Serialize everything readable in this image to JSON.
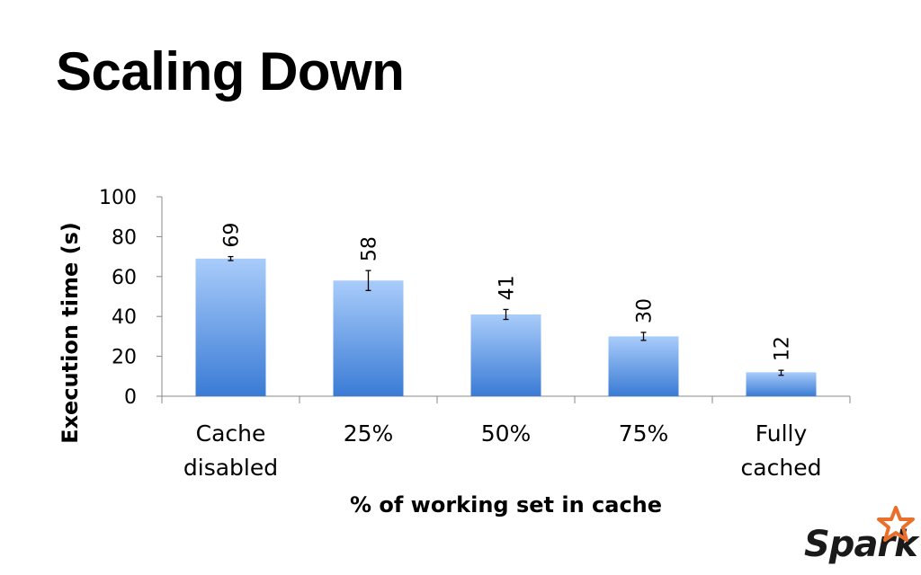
{
  "slide": {
    "title": "Scaling Down"
  },
  "chart_data": {
    "type": "bar",
    "categories": [
      [
        "Cache",
        "disabled"
      ],
      [
        "25%"
      ],
      [
        "50%"
      ],
      [
        "75%"
      ],
      [
        "Fully",
        "cached"
      ]
    ],
    "values": [
      69,
      58,
      41,
      30,
      12
    ],
    "data_labels": [
      "69",
      "58",
      "41",
      "30",
      "12"
    ],
    "error_bars": [
      {
        "low": 68,
        "high": 70
      },
      {
        "low": 53,
        "high": 63
      },
      {
        "low": 38.5,
        "high": 43.5
      },
      {
        "low": 28,
        "high": 32
      },
      {
        "low": 10.5,
        "high": 13
      }
    ],
    "y_ticks": [
      "0",
      "20",
      "40",
      "60",
      "80",
      "100"
    ],
    "ylim": [
      0,
      100
    ],
    "xlabel": "% of working set in cache",
    "ylabel": "Execution time (s)",
    "grid": false,
    "legend": "none",
    "colors": {
      "bar_top": "#a9ccfa",
      "bar_bottom": "#3a7bd5",
      "axis": "#888888"
    }
  },
  "logo": {
    "text": "Spark",
    "star_color": "#e8702a"
  }
}
